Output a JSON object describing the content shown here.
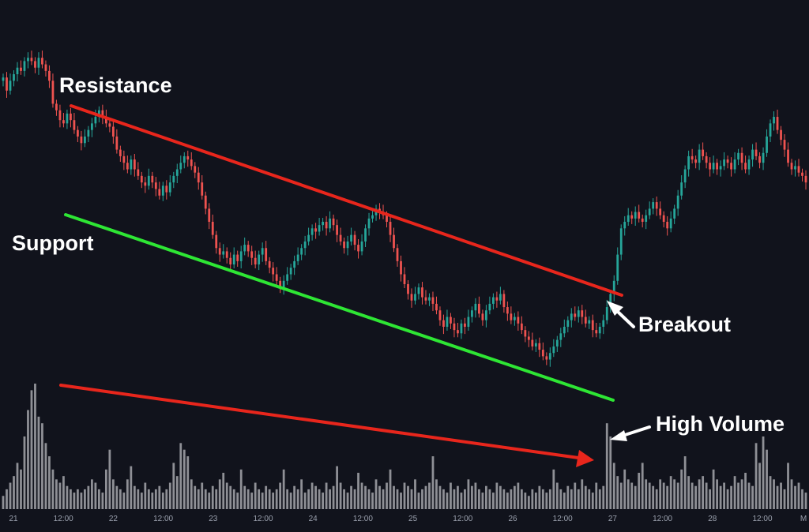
{
  "chart_data": {
    "type": "candlestick",
    "title": "",
    "annotations": {
      "resistance": "Resistance",
      "support": "Support",
      "breakout": "Breakout",
      "high_volume": "High Volume"
    },
    "x_ticks": [
      "21",
      "12:00",
      "22",
      "12:00",
      "23",
      "12:00",
      "24",
      "12:00",
      "25",
      "12:00",
      "26",
      "12:00",
      "27",
      "12:00",
      "28",
      "12:00",
      "M"
    ],
    "series": [
      {
        "close": [
          98,
          94,
          97,
          99,
          101,
          100,
          103,
          104,
          103,
          101,
          104,
          102,
          100,
          97,
          90,
          88,
          85,
          84,
          87,
          85,
          82,
          80,
          78,
          80,
          82,
          84,
          86,
          88,
          86,
          84,
          83,
          80,
          76,
          74,
          72,
          70,
          73,
          70,
          68,
          66,
          65,
          68,
          66,
          64,
          62,
          65,
          63,
          66,
          68,
          70,
          72,
          74,
          73,
          71,
          69,
          66,
          62,
          58,
          54,
          50,
          46,
          44,
          45,
          43,
          41,
          44,
          42,
          45,
          47,
          45,
          43,
          41,
          44,
          46,
          42,
          40,
          38,
          36,
          34,
          36,
          38,
          40,
          42,
          44,
          46,
          48,
          50,
          52,
          51,
          53,
          54,
          52,
          55,
          53,
          50,
          48,
          46,
          48,
          50,
          47,
          45,
          48,
          52,
          55,
          56,
          58,
          57,
          56,
          54,
          50,
          46,
          42,
          38,
          35,
          32,
          30,
          32,
          34,
          31,
          30,
          31,
          29,
          27,
          24,
          22,
          25,
          23,
          21,
          20,
          23,
          22,
          25,
          27,
          29,
          26,
          24,
          27,
          29,
          31,
          30,
          32,
          28,
          26,
          24,
          25,
          23,
          21,
          19,
          18,
          16,
          17,
          15,
          13,
          12,
          14,
          16,
          18,
          20,
          22,
          24,
          26,
          25,
          27,
          25,
          23,
          24,
          21,
          20,
          22,
          24,
          28,
          32,
          36,
          44,
          52,
          54,
          56,
          55,
          57,
          55,
          54,
          56,
          58,
          60,
          58,
          56,
          54,
          52,
          55,
          58,
          62,
          66,
          70,
          74,
          73,
          72,
          76,
          74,
          72,
          70,
          72,
          70,
          71,
          73,
          72,
          70,
          73,
          75,
          72,
          70,
          73,
          76,
          74,
          72,
          75,
          80,
          84,
          86,
          82,
          79,
          76,
          72,
          70,
          71,
          69,
          68,
          66
        ],
        "volume": [
          4,
          6,
          8,
          10,
          14,
          12,
          22,
          30,
          36,
          38,
          28,
          26,
          20,
          16,
          12,
          9,
          8,
          10,
          7,
          6,
          5,
          6,
          5,
          6,
          7,
          9,
          8,
          6,
          5,
          12,
          18,
          9,
          7,
          6,
          5,
          9,
          13,
          7,
          6,
          5,
          8,
          6,
          5,
          6,
          7,
          5,
          6,
          8,
          14,
          10,
          20,
          18,
          16,
          9,
          7,
          6,
          8,
          6,
          5,
          7,
          6,
          9,
          11,
          8,
          7,
          6,
          5,
          12,
          7,
          6,
          5,
          8,
          6,
          5,
          7,
          6,
          5,
          6,
          8,
          12,
          6,
          5,
          7,
          6,
          9,
          5,
          6,
          8,
          7,
          6,
          5,
          8,
          6,
          7,
          13,
          8,
          6,
          5,
          7,
          6,
          11,
          8,
          7,
          6,
          5,
          9,
          7,
          6,
          8,
          12,
          7,
          6,
          5,
          8,
          7,
          6,
          9,
          5,
          6,
          7,
          8,
          16,
          9,
          7,
          6,
          5,
          8,
          6,
          7,
          5,
          6,
          9,
          7,
          8,
          6,
          5,
          7,
          6,
          5,
          8,
          7,
          6,
          5,
          6,
          7,
          8,
          6,
          5,
          4,
          6,
          5,
          7,
          6,
          5,
          6,
          12,
          8,
          6,
          5,
          7,
          6,
          8,
          6,
          9,
          7,
          6,
          5,
          8,
          6,
          7,
          26,
          22,
          14,
          10,
          8,
          12,
          9,
          8,
          7,
          11,
          14,
          9,
          8,
          7,
          6,
          9,
          8,
          7,
          10,
          9,
          8,
          12,
          16,
          10,
          8,
          7,
          9,
          10,
          8,
          6,
          12,
          9,
          7,
          8,
          6,
          7,
          10,
          8,
          9,
          11,
          8,
          7,
          20,
          14,
          22,
          18,
          10,
          9,
          7,
          8,
          6,
          14,
          9,
          7,
          8,
          6,
          5
        ]
      }
    ],
    "y_range": [
      -36,
      112
    ],
    "grid": false,
    "legend": "none",
    "colors": {
      "up": "#26a69a",
      "down": "#ef5350",
      "volume": "#8f9096",
      "resistance": "#e8261c",
      "support": "#2ee634",
      "volume_trend": "#e8261c",
      "arrow": "#ffffff",
      "label": "#ffffff",
      "tick": "#9aa0ad",
      "background": "#11131c"
    }
  }
}
